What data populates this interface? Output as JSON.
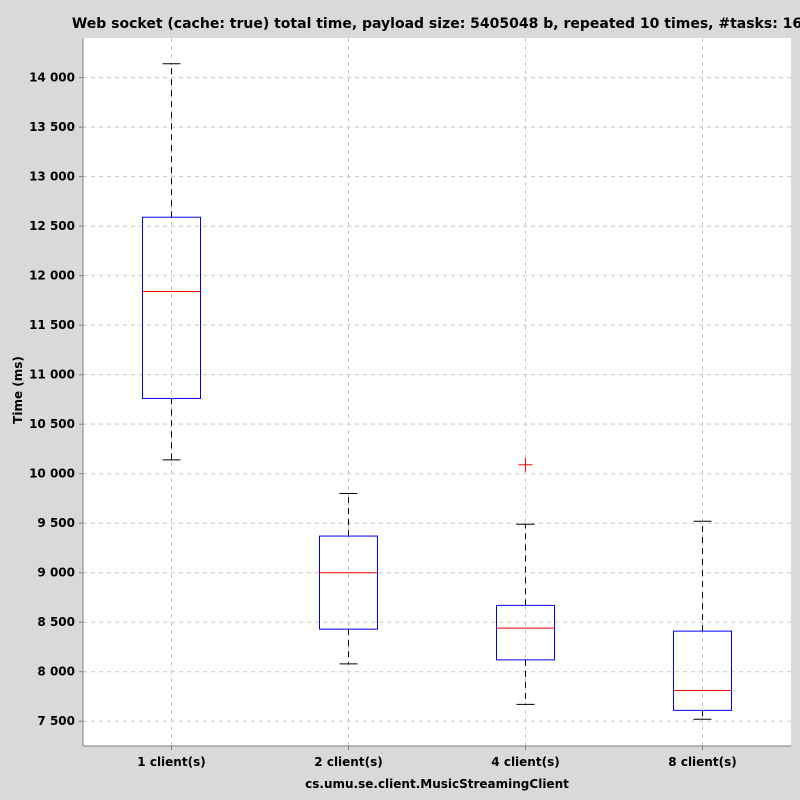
{
  "chart_data": {
    "type": "boxplot",
    "title": "Web socket (cache: true) total time, payload size: 5405048 b, repeated 10 times, #tasks: 16",
    "xlabel": "cs.umu.se.client.MusicStreamingClient",
    "ylabel": "Time (ms)",
    "ylim": [
      7250,
      14400
    ],
    "yticks": [
      7500,
      8000,
      8500,
      9000,
      9500,
      10000,
      10500,
      11000,
      11500,
      12000,
      12500,
      13000,
      13500,
      14000
    ],
    "ytick_labels": [
      "7 500",
      "8 000",
      "8 500",
      "9 000",
      "9 500",
      "10 000",
      "10 500",
      "11 000",
      "11 500",
      "12 000",
      "12 500",
      "13 000",
      "13 500",
      "14 000"
    ],
    "grid": true,
    "categories": [
      "1 client(s)",
      "2 client(s)",
      "4 client(s)",
      "8 client(s)"
    ],
    "boxes": [
      {
        "min": 10140,
        "q1": 10760,
        "median": 11840,
        "q3": 12590,
        "max": 14140,
        "outliers": []
      },
      {
        "min": 8080,
        "q1": 8430,
        "median": 9000,
        "q3": 9370,
        "max": 9800,
        "outliers": []
      },
      {
        "min": 7670,
        "q1": 8120,
        "median": 8440,
        "q3": 8670,
        "max": 9490,
        "outliers": [
          10090
        ]
      },
      {
        "min": 7520,
        "q1": 7610,
        "median": 7810,
        "q3": 8410,
        "max": 9520,
        "outliers": []
      }
    ],
    "colors": {
      "box": "#0000ff",
      "median": "#ff0000",
      "whisker": "#000000",
      "outlier": "#ff0000",
      "grid": "#c8c8c8",
      "plot_background": "#ffffff",
      "page_background": "#d9d9d9"
    }
  }
}
